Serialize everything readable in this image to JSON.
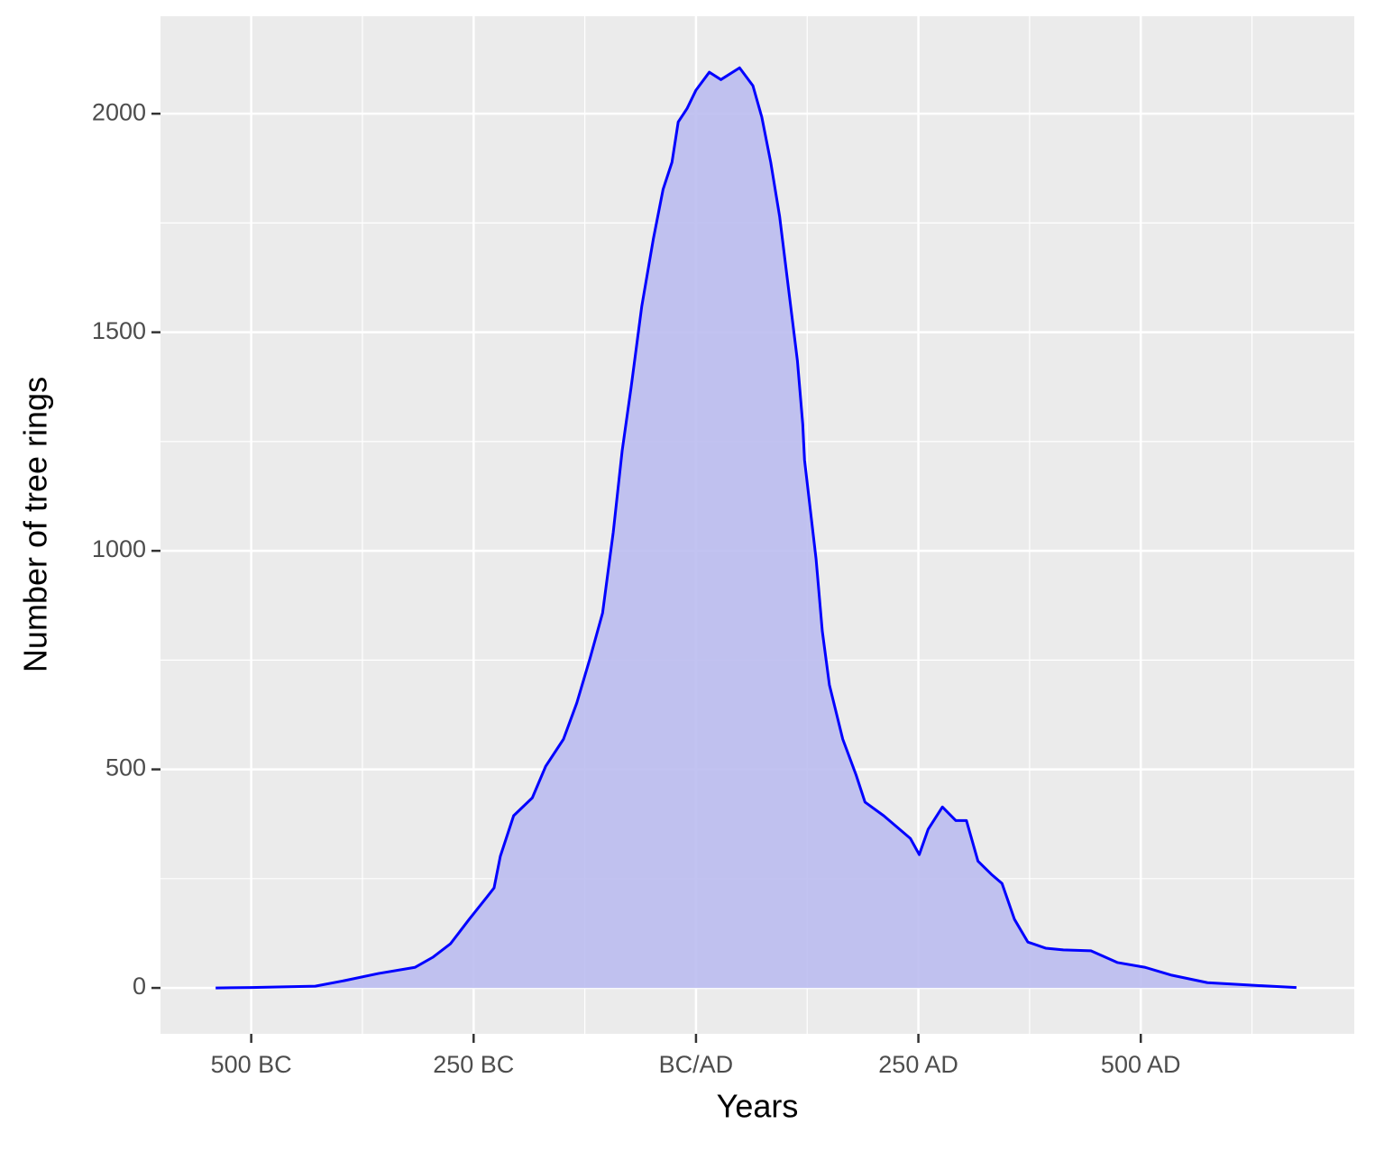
{
  "chart_data": {
    "type": "area",
    "x_label": "Years",
    "y_label": "Number of tree rings",
    "x": [
      -540,
      -500,
      -428,
      -397,
      -357,
      -316,
      -296,
      -276,
      -255,
      -235,
      -227,
      -220,
      -205,
      -184,
      -169,
      -149,
      -134,
      -119,
      -105,
      -93,
      -83,
      -73,
      -61,
      -48,
      -37,
      -27,
      -20,
      -10,
      0,
      15,
      28,
      49,
      64,
      74,
      84,
      94,
      104,
      114,
      120,
      122,
      135,
      142,
      150,
      165,
      180,
      190,
      211,
      241,
      251,
      261,
      277,
      292,
      304,
      317,
      332,
      344,
      358,
      373,
      393,
      413,
      444,
      474,
      505,
      535,
      575,
      626,
      675
    ],
    "series": [
      {
        "name": "Number of tree rings",
        "color": "#0000ff",
        "fill": "#bbbdf0",
        "values": [
          0,
          1,
          4,
          16,
          33,
          47,
          70,
          101,
          157,
          208,
          229,
          301,
          394,
          435,
          507,
          569,
          652,
          755,
          858,
          1043,
          1229,
          1373,
          1559,
          1713,
          1827,
          1889,
          1981,
          2012,
          2054,
          2095,
          2078,
          2105,
          2064,
          1992,
          1889,
          1765,
          1600,
          1435,
          1290,
          1208,
          981,
          816,
          693,
          569,
          487,
          425,
          394,
          342,
          305,
          363,
          414,
          383,
          383,
          290,
          260,
          239,
          157,
          105,
          91,
          87,
          85,
          58,
          47,
          29,
          12,
          6,
          1
        ]
      }
    ],
    "xlim": [
      -602,
      740
    ],
    "ylim": [
      -105,
      2223
    ],
    "xticks": [
      {
        "value": -500,
        "label": "500 BC"
      },
      {
        "value": -250,
        "label": "250 BC"
      },
      {
        "value": 0,
        "label": "BC/AD"
      },
      {
        "value": 250,
        "label": "250 AD"
      },
      {
        "value": 500,
        "label": "500 AD"
      }
    ],
    "yticks": [
      0,
      500,
      1000,
      1500,
      2000
    ],
    "xminor": [
      -375,
      -125,
      125,
      375,
      625
    ],
    "yminor": [
      250,
      750,
      1250,
      1750
    ],
    "grid": true
  }
}
